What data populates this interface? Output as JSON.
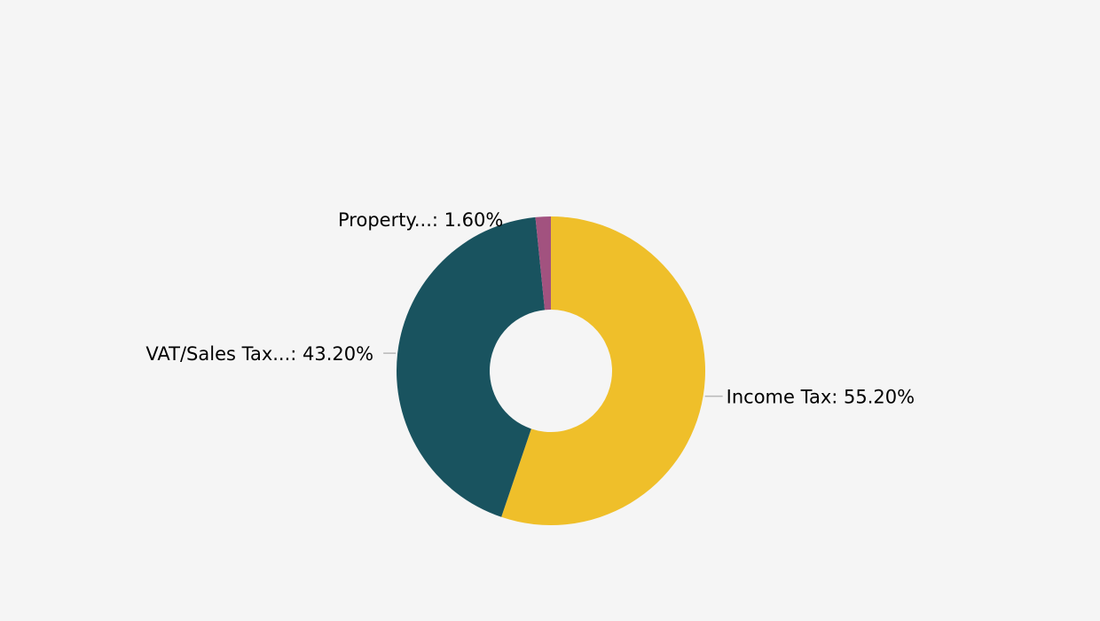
{
  "chart_data": {
    "type": "pie",
    "hole": true,
    "title": "",
    "slices": [
      {
        "label": "Income Tax",
        "value": 55.2,
        "display": "Income Tax: 55.20%",
        "color": "#EFBF2A"
      },
      {
        "label": "VAT/Sales Tax...",
        "value": 43.2,
        "display": "VAT/Sales Tax...: 43.20%",
        "color": "#19535F"
      },
      {
        "label": "Property...",
        "value": 1.6,
        "display": "Property...: 1.60%",
        "color": "#A2527F"
      }
    ],
    "direction": "clockwise",
    "start": "top",
    "legend": "none",
    "background": "#F5F5F5"
  }
}
